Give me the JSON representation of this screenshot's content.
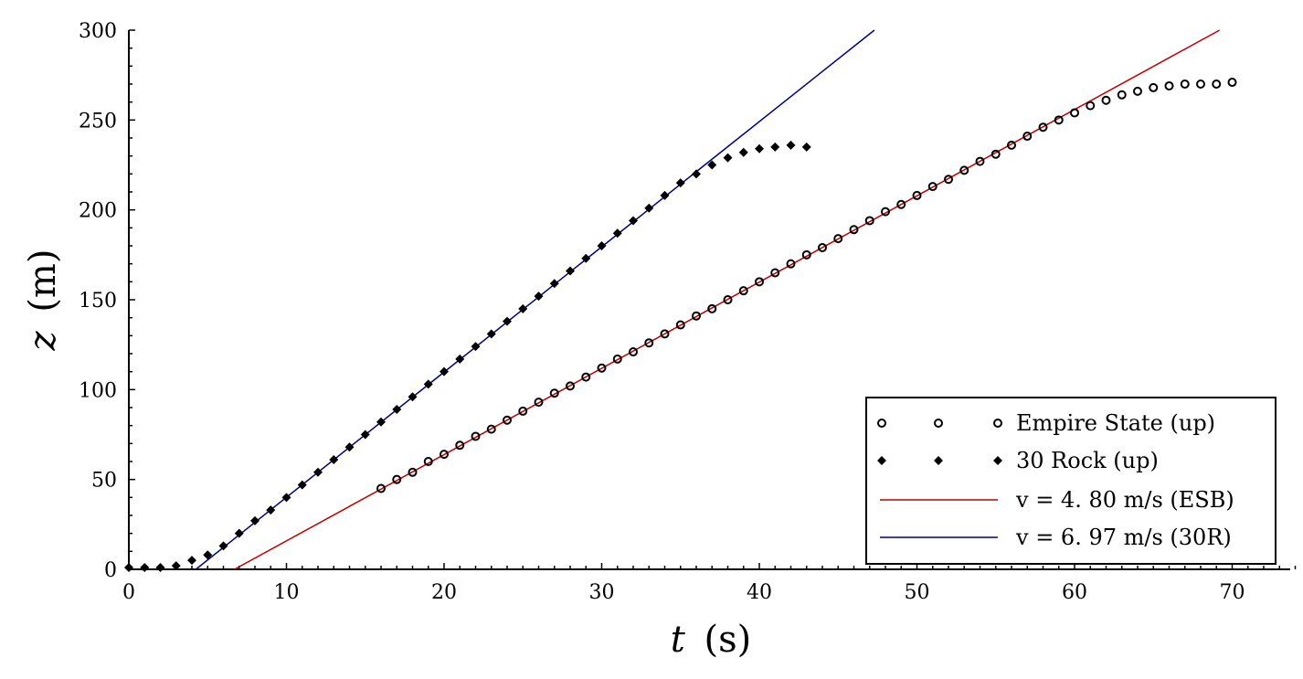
{
  "chart_data": {
    "type": "scatter",
    "xlabel_var": "t",
    "xlabel_unit": "(s)",
    "ylabel_var": "z",
    "ylabel_unit": "(m)",
    "xlim": [
      0,
      74
    ],
    "ylim": [
      0,
      300
    ],
    "xticks": [
      0,
      10,
      20,
      30,
      40,
      50,
      60,
      70
    ],
    "yticks": [
      0,
      50,
      100,
      150,
      200,
      250,
      300
    ],
    "grid": false,
    "legend_position": "bottom-right",
    "series": [
      {
        "name": "Empire State (up)",
        "kind": "points",
        "marker": "circle",
        "color": "#000000",
        "x": [
          16,
          17,
          18,
          19,
          20,
          21,
          22,
          23,
          24,
          25,
          26,
          27,
          28,
          29,
          30,
          31,
          32,
          33,
          34,
          35,
          36,
          37,
          38,
          39,
          40,
          41,
          42,
          43,
          44,
          45,
          46,
          47,
          48,
          49,
          50,
          51,
          52,
          53,
          54,
          55,
          56,
          57,
          58,
          59,
          60,
          61,
          62,
          63,
          64,
          65,
          66,
          67,
          68,
          69,
          70
        ],
        "y": [
          45,
          50,
          54,
          60,
          64,
          69,
          74,
          78,
          83,
          88,
          93,
          98,
          102,
          107,
          112,
          117,
          121,
          126,
          131,
          136,
          141,
          145,
          150,
          155,
          160,
          165,
          170,
          175,
          179,
          184,
          189,
          194,
          199,
          203,
          208,
          213,
          217,
          222,
          227,
          231,
          236,
          241,
          246,
          250,
          254,
          258,
          261,
          264,
          266,
          268,
          269,
          270,
          270,
          270,
          271
        ]
      },
      {
        "name": "30 Rock (up)",
        "kind": "points",
        "marker": "diamond",
        "color": "#000000",
        "x": [
          0,
          1,
          2,
          3,
          4,
          5,
          6,
          7,
          8,
          9,
          10,
          11,
          12,
          13,
          14,
          15,
          16,
          17,
          18,
          19,
          20,
          21,
          22,
          23,
          24,
          25,
          26,
          27,
          28,
          29,
          30,
          31,
          32,
          33,
          34,
          35,
          36,
          37,
          38,
          39,
          40,
          41,
          42,
          43
        ],
        "y": [
          1,
          1,
          1,
          2,
          5,
          8,
          13,
          20,
          27,
          33,
          40,
          47,
          54,
          61,
          68,
          75,
          82,
          89,
          96,
          103,
          110,
          117,
          124,
          131,
          138,
          145,
          152,
          159,
          166,
          173,
          180,
          187,
          194,
          201,
          208,
          215,
          220,
          225,
          229,
          232,
          234,
          235,
          236,
          235
        ]
      },
      {
        "name": "v = 4. 80 m/s (ESB)",
        "kind": "line",
        "color": "#c00000",
        "x": [
          6.7,
          69.2
        ],
        "y": [
          0,
          300
        ]
      },
      {
        "name": "v = 6. 97 m/s (30R)",
        "kind": "line",
        "color": "#000080",
        "x": [
          4.25,
          47.3
        ],
        "y": [
          0,
          300
        ]
      }
    ]
  }
}
